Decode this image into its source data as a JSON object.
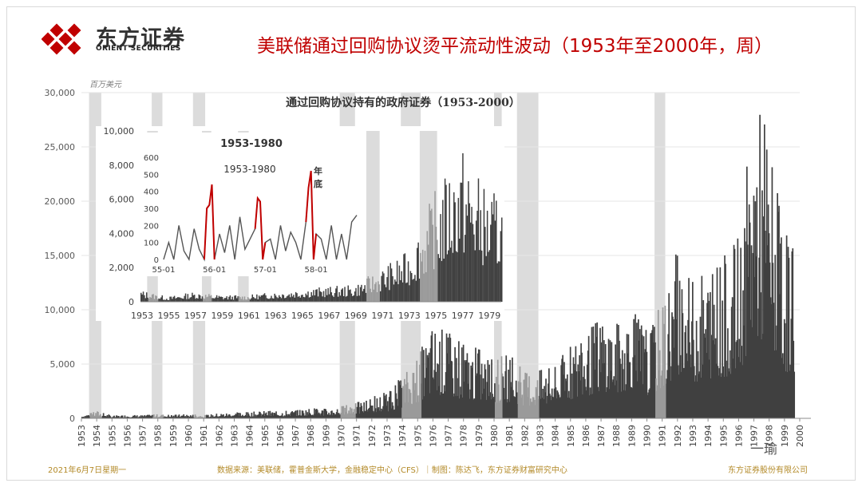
{
  "header": {
    "logo_cn": "东方证券",
    "logo_en": "ORIENT SECURITIES",
    "title": "美联储通过回购协议烫平流动性波动（1953年至2000年，周）"
  },
  "footer": {
    "date": "2021年6月7日星期一",
    "source": "数据来源：美联储，霍普金斯大学，金融稳定中心（CFS）｜制图：陈达飞，东方证券财富研究中心",
    "company": "东方证券股份有限公司"
  },
  "watermark": "一瑜",
  "colors": {
    "brand_red": "#c00000",
    "bar": "#404040",
    "bar_light": "#9a9a9a",
    "recession": "#dcdcdc",
    "highlight": "#c00000",
    "footer": "#b38a28"
  },
  "chart_data": [
    {
      "type": "bar",
      "title": "通过回购协议持有的政府证券（1953-2000）",
      "ylabel": "百万美元",
      "ylim": [
        0,
        30000
      ],
      "yticks": [
        "0",
        "5,000",
        "10,000",
        "15,000",
        "20,000",
        "25,000",
        "30,000"
      ],
      "xlim": [
        1953,
        2000
      ],
      "xticks": [
        "1953",
        "1954",
        "1955",
        "1956",
        "1957",
        "1958",
        "1959",
        "1960",
        "1961",
        "1962",
        "1963",
        "1964",
        "1965",
        "1966",
        "1967",
        "1968",
        "1969",
        "1970",
        "1971",
        "1972",
        "1973",
        "1974",
        "1975",
        "1976",
        "1977",
        "1978",
        "1979",
        "1980",
        "1981",
        "1982",
        "1983",
        "1984",
        "1985",
        "1986",
        "1987",
        "1988",
        "1989",
        "1990",
        "1991",
        "1992",
        "1993",
        "1994",
        "1995",
        "1996",
        "1997",
        "1998",
        "1999",
        "2000"
      ],
      "recessions": [
        [
          1953.5,
          1954.3
        ],
        [
          1957.6,
          1958.3
        ],
        [
          1960.3,
          1961.1
        ],
        [
          1969.9,
          1970.9
        ],
        [
          1973.9,
          1975.2
        ],
        [
          1980.0,
          1980.5
        ],
        [
          1981.5,
          1982.9
        ],
        [
          1990.5,
          1991.2
        ]
      ],
      "grid": true,
      "series": [
        {
          "values_note": "weekly data, approximate envelope (x: year, y: peak in millions USD)",
          "x": [
            1953,
            1954,
            1955,
            1956,
            1957,
            1958,
            1959,
            1960,
            1961,
            1962,
            1963,
            1964,
            1965,
            1966,
            1967,
            1968,
            1969,
            1970,
            1971,
            1972,
            1973,
            1974,
            1975,
            1976,
            1977,
            1978,
            1979,
            1980,
            1981,
            1982,
            1983,
            1984,
            1985,
            1986,
            1987,
            1988,
            1989,
            1990,
            1991,
            1992,
            1993,
            1994,
            1995,
            1996,
            1997,
            1998,
            1999
          ],
          "y": [
            300,
            700,
            250,
            350,
            300,
            400,
            350,
            400,
            300,
            500,
            550,
            600,
            700,
            700,
            800,
            1000,
            900,
            1200,
            1500,
            2000,
            2500,
            4000,
            6000,
            9000,
            8000,
            7000,
            6500,
            5500,
            6000,
            4500,
            4500,
            5000,
            7000,
            8000,
            10000,
            9000,
            11000,
            8000,
            11000,
            16000,
            13000,
            14500,
            15000,
            17000,
            30000,
            26000,
            17000
          ]
        }
      ]
    },
    {
      "type": "bar",
      "title": "1953-1980",
      "ylim": [
        0,
        10000
      ],
      "yticks": [
        "0",
        "2,000",
        "4,000",
        "6,000",
        "8,000",
        "10,000"
      ],
      "xticks": [
        "1953",
        "1955",
        "1957",
        "1959",
        "1961",
        "1963",
        "1965",
        "1967",
        "1969",
        "1971",
        "1973",
        "1975",
        "1977",
        "1979"
      ],
      "series": [
        {
          "x": [
            1953,
            1955,
            1957,
            1959,
            1961,
            1963,
            1965,
            1967,
            1969,
            1971,
            1973,
            1975,
            1977,
            1979
          ],
          "y": [
            700,
            300,
            600,
            400,
            400,
            600,
            800,
            900,
            1000,
            2000,
            3000,
            6500,
            9200,
            6500
          ]
        }
      ]
    },
    {
      "type": "line",
      "title": "1953-1980",
      "annotation": "年底",
      "ylim": [
        0,
        600
      ],
      "yticks": [
        "0",
        "100",
        "200",
        "300",
        "400",
        "500",
        "600"
      ],
      "xticks": [
        "55-01",
        "56-01",
        "57-01",
        "58-01"
      ],
      "series": [
        {
          "x": [
            1955.0,
            1955.1,
            1955.2,
            1955.3,
            1955.4,
            1955.5,
            1955.6,
            1955.7,
            1955.8,
            1955.85,
            1955.9,
            1955.95,
            1956.0,
            1956.1,
            1956.2,
            1956.3,
            1956.4,
            1956.5,
            1956.6,
            1956.7,
            1956.8,
            1956.85,
            1956.9,
            1956.95,
            1957.0,
            1957.1,
            1957.2,
            1957.3,
            1957.4,
            1957.5,
            1957.6,
            1957.7,
            1957.8,
            1957.85,
            1957.9,
            1957.95,
            1958.0,
            1958.1,
            1958.2,
            1958.3,
            1958.4,
            1958.5,
            1958.6,
            1958.7,
            1958.8
          ],
          "y": [
            0,
            100,
            0,
            200,
            50,
            0,
            180,
            60,
            0,
            300,
            320,
            440,
            0,
            150,
            40,
            200,
            0,
            250,
            60,
            120,
            180,
            360,
            340,
            0,
            100,
            120,
            0,
            200,
            50,
            160,
            100,
            0,
            220,
            420,
            520,
            0,
            150,
            120,
            0,
            200,
            0,
            150,
            0,
            220,
            260
          ],
          "highlight_ranges": [
            [
              1955.8,
              1956.0
            ],
            [
              1956.8,
              1957.0
            ],
            [
              1957.8,
              1958.0
            ]
          ]
        }
      ]
    }
  ]
}
